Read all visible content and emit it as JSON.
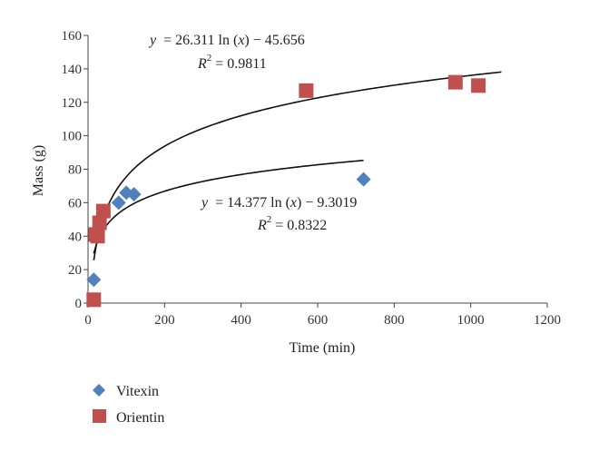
{
  "chart_data": {
    "type": "scatter",
    "title": "",
    "xlabel": "Time (min)",
    "ylabel": "Mass (g)",
    "xlim": [
      0,
      1200
    ],
    "ylim": [
      0,
      160
    ],
    "xticks": [
      0,
      200,
      400,
      600,
      800,
      1000,
      1200
    ],
    "yticks": [
      0,
      20,
      40,
      60,
      80,
      100,
      120,
      140,
      160
    ],
    "grid": false,
    "legend_position": "bottom-left",
    "series": [
      {
        "name": "Vitexin",
        "marker": "diamond",
        "color": "#4F81BD",
        "points": [
          {
            "x": 15,
            "y": 14
          },
          {
            "x": 80,
            "y": 60
          },
          {
            "x": 100,
            "y": 66
          },
          {
            "x": 120,
            "y": 65
          },
          {
            "x": 720,
            "y": 74
          }
        ],
        "trendline": {
          "type": "log",
          "a": 14.377,
          "b": -9.3019,
          "x_range": [
            15,
            720
          ],
          "equation_parts": [
            "y",
            "= 14.377 ln (",
            "x",
            ") − 9.3019"
          ],
          "r2_label": "R",
          "r2_value": "= 0.8322"
        }
      },
      {
        "name": "Orientin",
        "marker": "square",
        "color": "#C0504D",
        "points": [
          {
            "x": 15,
            "y": 2
          },
          {
            "x": 20,
            "y": 41
          },
          {
            "x": 25,
            "y": 40
          },
          {
            "x": 30,
            "y": 48
          },
          {
            "x": 40,
            "y": 55
          },
          {
            "x": 570,
            "y": 127
          },
          {
            "x": 960,
            "y": 132
          },
          {
            "x": 1020,
            "y": 130
          }
        ],
        "trendline": {
          "type": "log",
          "a": 26.311,
          "b": -45.656,
          "x_range": [
            15,
            1080
          ],
          "equation_parts": [
            "y",
            "= 26.311 ln (",
            "x",
            ") − 45.656"
          ],
          "r2_label": "R",
          "r2_value": "= 0.9811"
        }
      }
    ]
  }
}
